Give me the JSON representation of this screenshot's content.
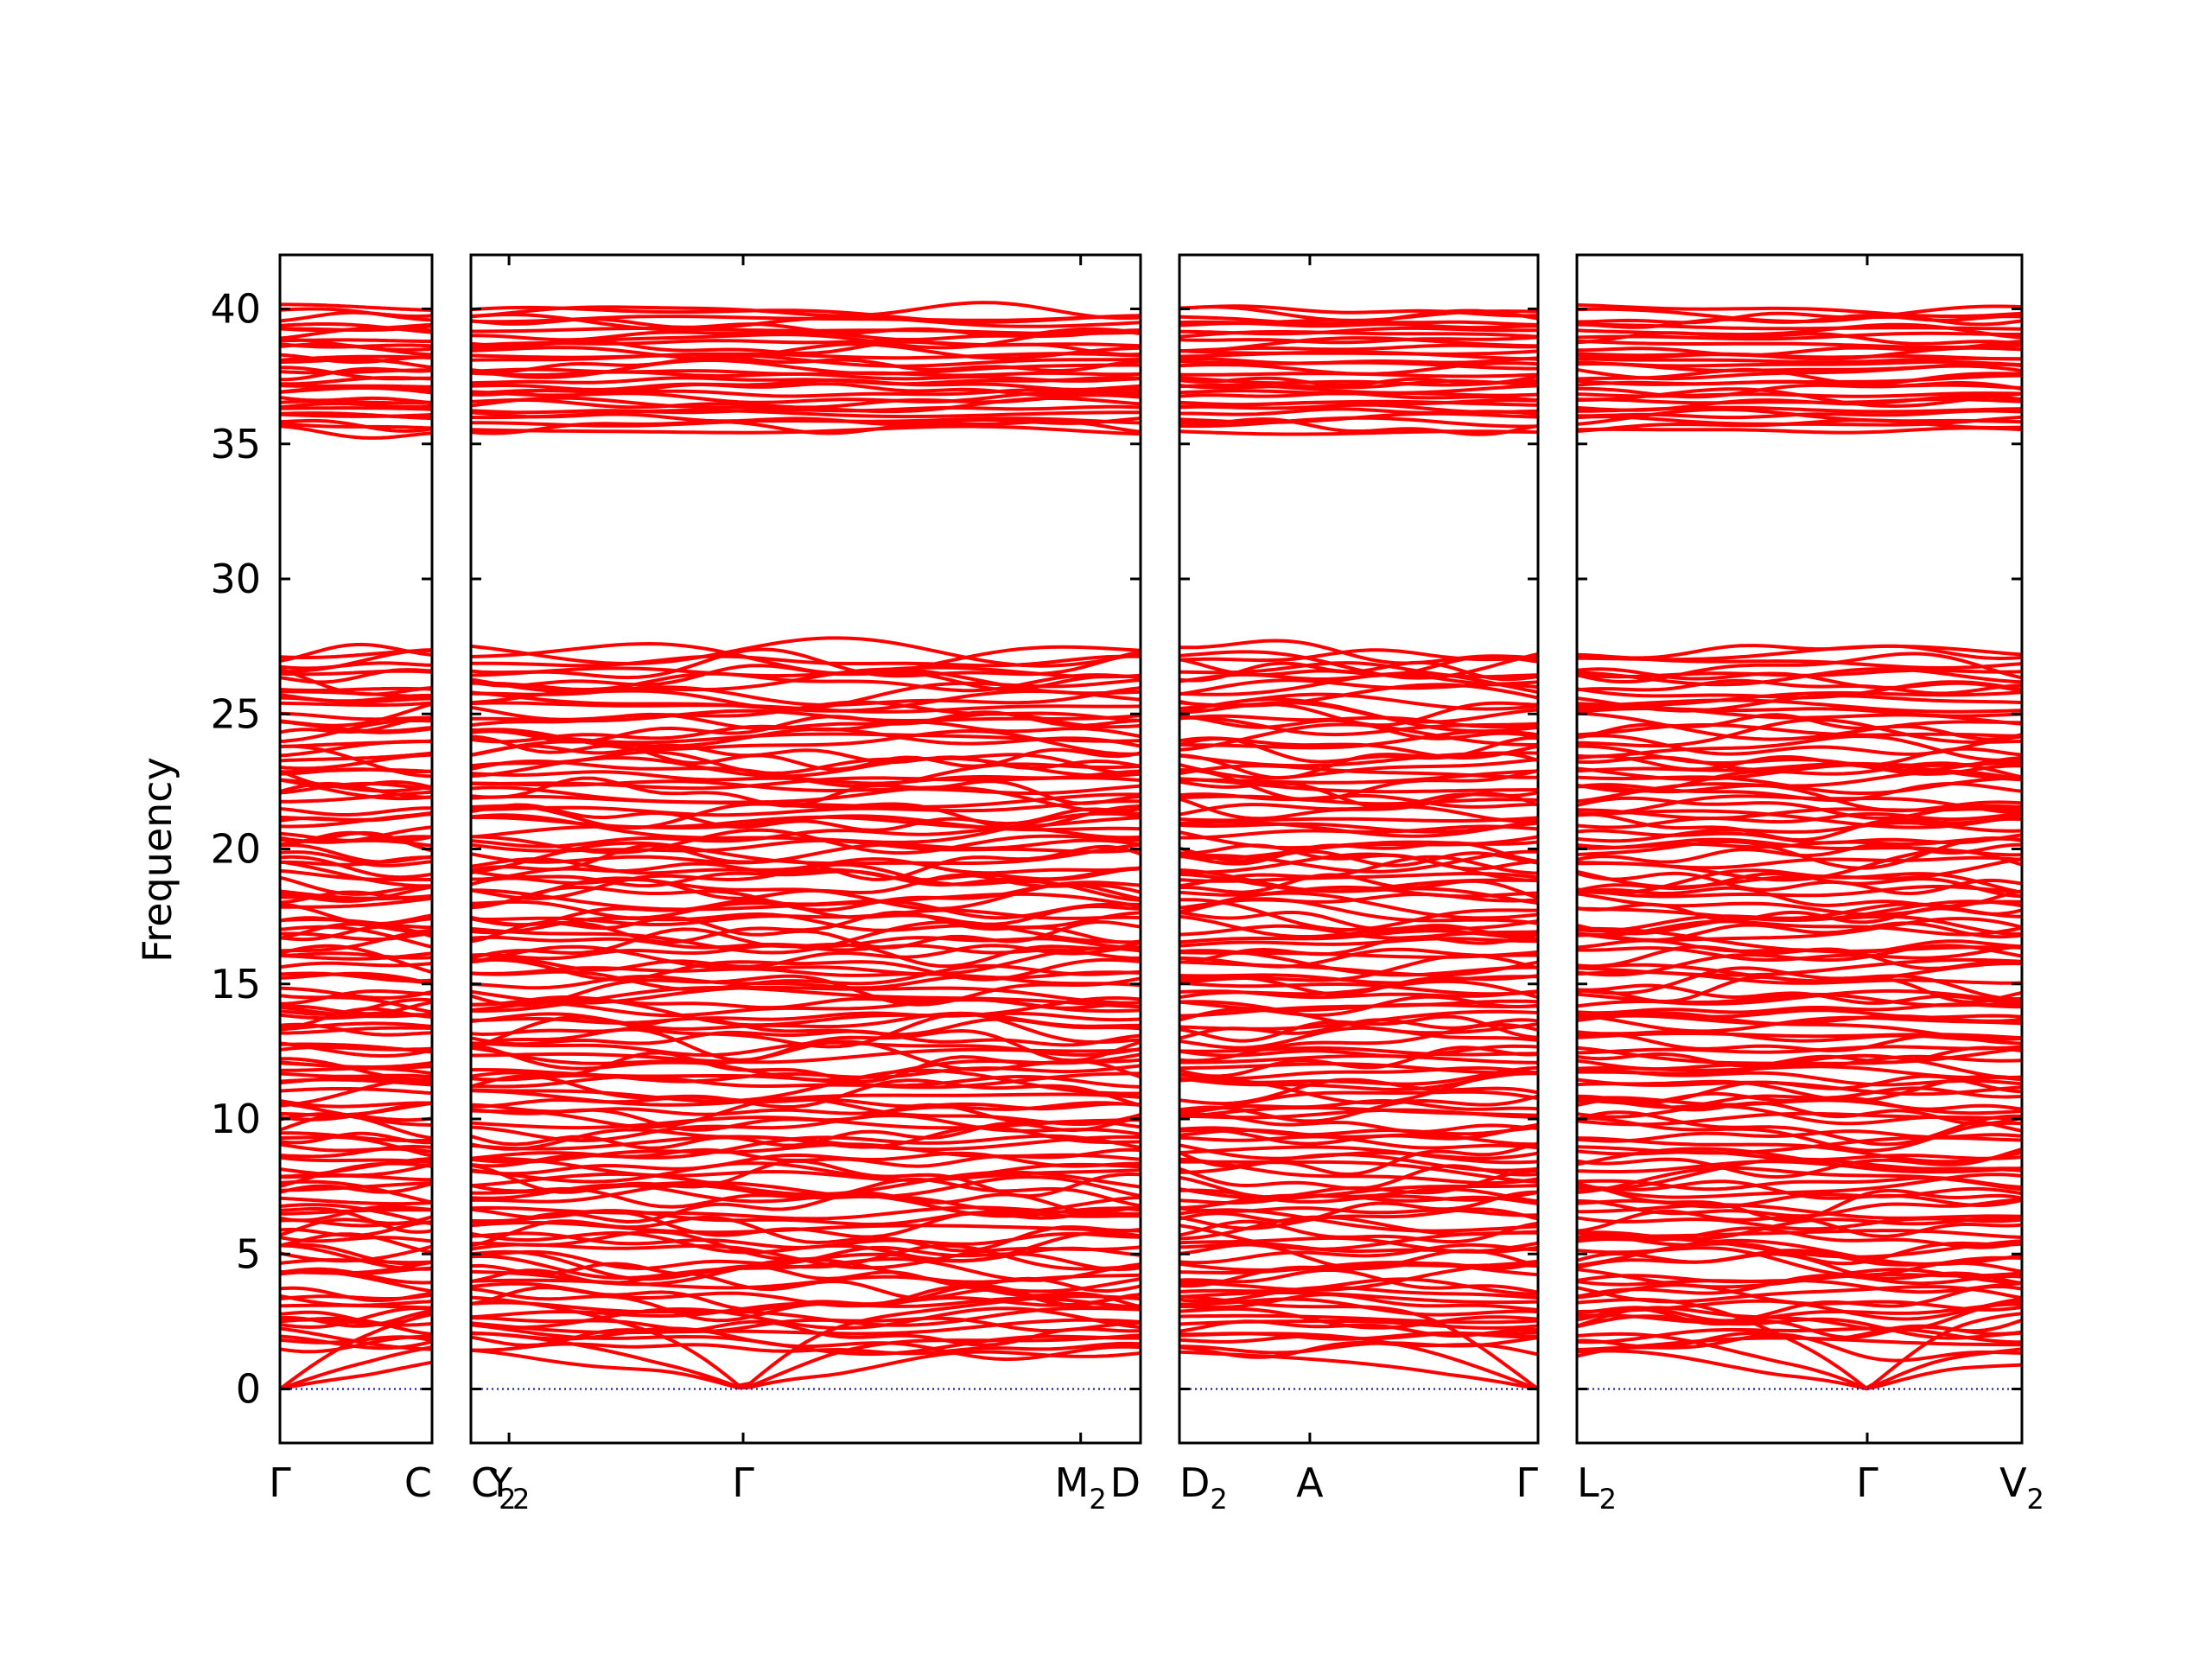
{
  "chart_data": {
    "type": "line",
    "title": "",
    "ylabel": "Frequency",
    "ylim": [
      -2,
      42
    ],
    "yticks": [
      0,
      5,
      10,
      15,
      20,
      25,
      30,
      35,
      40
    ],
    "grid": false,
    "band_color": "#ff0000",
    "zero_line_color": "#0000cc",
    "bands": {
      "count": 170,
      "ranges": [
        {
          "min": 0,
          "max": 27.6
        },
        {
          "min": 35.3,
          "max": 40.0
        }
      ],
      "acoustic_branches_meet_zero_at": [
        "Γ"
      ]
    },
    "panels": [
      {
        "name": "panel-1",
        "path_length": 0.56,
        "x_ticks": [
          {
            "x": 0.0,
            "label": "Γ"
          },
          {
            "x": 0.56,
            "label": "C",
            "sub": ""
          }
        ]
      },
      {
        "name": "panel-2",
        "path_length": 2.46,
        "x_ticks": [
          {
            "x": 0.0,
            "label": "C",
            "sub": "2"
          },
          {
            "x": 0.14,
            "label": "Y",
            "sub": "2"
          },
          {
            "x": 1.0,
            "label": "Γ"
          },
          {
            "x": 2.24,
            "label": "M",
            "sub": "2"
          },
          {
            "x": 2.46,
            "label": "D",
            "sub": ""
          }
        ]
      },
      {
        "name": "panel-3",
        "path_length": 1.32,
        "x_ticks": [
          {
            "x": 0.0,
            "label": "D",
            "sub": "2"
          },
          {
            "x": 0.48,
            "label": "A"
          },
          {
            "x": 1.32,
            "label": "Γ"
          }
        ]
      },
      {
        "name": "panel-4",
        "path_length": 1.64,
        "x_ticks": [
          {
            "x": 0.0,
            "label": "L",
            "sub": "2"
          },
          {
            "x": 1.07,
            "label": "Γ"
          },
          {
            "x": 1.64,
            "label": "V",
            "sub": "2"
          }
        ]
      }
    ]
  }
}
